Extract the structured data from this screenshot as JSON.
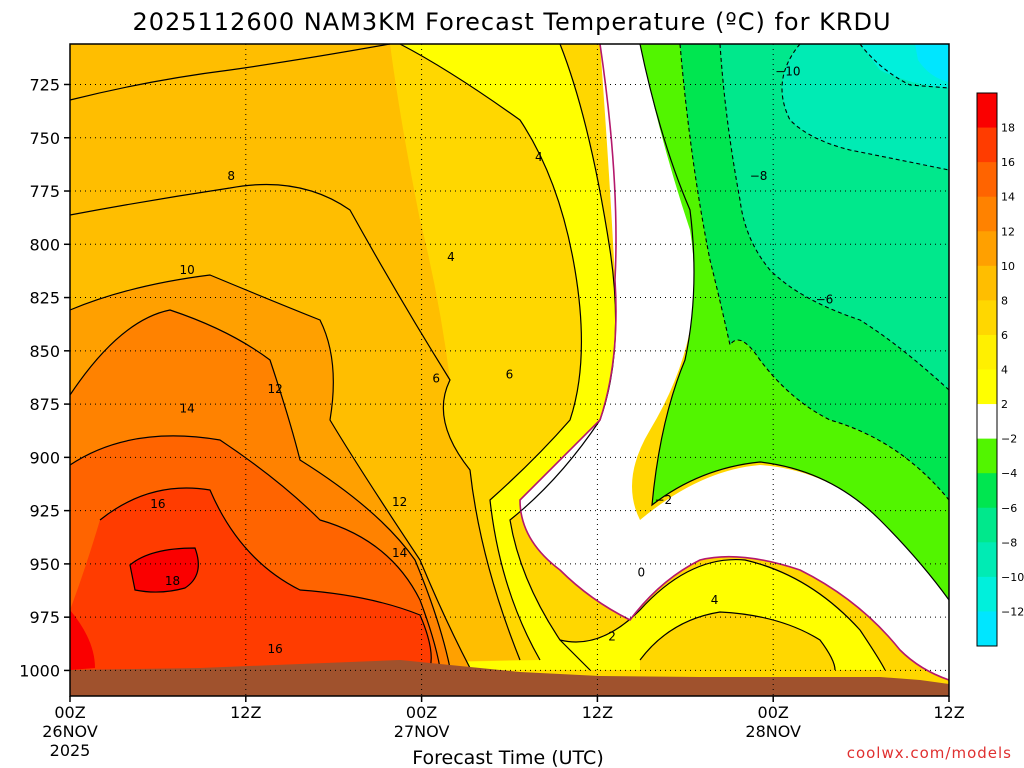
{
  "chart_data": {
    "type": "contour",
    "title": "2025112600 NAM3KM Forecast Temperature (ºC) for KRDU",
    "xlabel": "Forecast Time (UTC)",
    "ylabel": "",
    "credit": "coolwx.com/models",
    "x_ticks": [
      {
        "hour": 0,
        "lines": [
          "00Z",
          "26NOV",
          "2025"
        ]
      },
      {
        "hour": 12,
        "lines": [
          "12Z"
        ]
      },
      {
        "hour": 24,
        "lines": [
          "00Z",
          "27NOV"
        ]
      },
      {
        "hour": 36,
        "lines": [
          "12Z"
        ]
      },
      {
        "hour": 48,
        "lines": [
          "00Z",
          "28NOV"
        ]
      },
      {
        "hour": 60,
        "lines": [
          "12Z"
        ]
      }
    ],
    "xlim": [
      0,
      60
    ],
    "y_ticks": [
      725,
      750,
      775,
      800,
      825,
      850,
      875,
      900,
      925,
      950,
      975,
      1000
    ],
    "ylim": [
      706,
      1012
    ],
    "colorbar": {
      "ticks": [
        "18",
        "16",
        "14",
        "12",
        "10",
        "8",
        "6",
        "4",
        "2",
        "−2",
        "−4",
        "−6",
        "−8",
        "−10",
        "−12"
      ],
      "colors": [
        "#fa0000",
        "#ff3c00",
        "#ff6400",
        "#ff8200",
        "#ffa000",
        "#ffbe00",
        "#ffd700",
        "#fff000",
        "#ffff00",
        "#ffffff",
        "#52f500",
        "#00e650",
        "#00e88c",
        "#00ebb4",
        "#00f0dc",
        "#00e6ff"
      ],
      "bounds": [
        20,
        18,
        16,
        14,
        12,
        10,
        8,
        6,
        4,
        2,
        -2,
        -4,
        -6,
        -8,
        -10,
        -12,
        -14
      ]
    },
    "contour_labels": [
      {
        "text": "18",
        "hour": 7.0,
        "p": 958
      },
      {
        "text": "16",
        "hour": 6.0,
        "p": 922
      },
      {
        "text": "16",
        "hour": 14.0,
        "p": 990
      },
      {
        "text": "14",
        "hour": 8.0,
        "p": 877
      },
      {
        "text": "14",
        "hour": 22.5,
        "p": 945
      },
      {
        "text": "12",
        "hour": 14.0,
        "p": 868
      },
      {
        "text": "12",
        "hour": 22.5,
        "p": 921
      },
      {
        "text": "10",
        "hour": 8.0,
        "p": 812
      },
      {
        "text": "8",
        "hour": 11.0,
        "p": 768
      },
      {
        "text": "6",
        "hour": 25.0,
        "p": 863
      },
      {
        "text": "6",
        "hour": 30.0,
        "p": 861
      },
      {
        "text": "4",
        "hour": 26.0,
        "p": 806
      },
      {
        "text": "4",
        "hour": 32.0,
        "p": 759
      },
      {
        "text": "4",
        "hour": 44.0,
        "p": 967
      },
      {
        "text": "2",
        "hour": 37.0,
        "p": 984
      },
      {
        "text": "0",
        "hour": 39.0,
        "p": 954
      },
      {
        "text": "−2",
        "hour": 40.5,
        "p": 920
      },
      {
        "text": "−6",
        "hour": 51.5,
        "p": 826
      },
      {
        "text": "−8",
        "hour": 47.0,
        "p": 768
      },
      {
        "text": "−10",
        "hour": 49.0,
        "p": 719
      }
    ],
    "regions": [
      {
        "range": "16 to 20",
        "color": "#ff3c00"
      },
      {
        "range": "14 to 16",
        "color": "#ff6400"
      },
      {
        "range": "12 to 14",
        "color": "#ff8200"
      },
      {
        "range": "10 to 12",
        "color": "#ffa000"
      },
      {
        "range": "6 to 10",
        "color": "#ffbe00"
      },
      {
        "range": "4 to 6",
        "color": "#ffd700"
      },
      {
        "range": "2 to 4",
        "color": "#ffff00"
      },
      {
        "range": "-2 to 2",
        "color": "#ffffff"
      },
      {
        "range": "-2 to -4",
        "color": "#52f500"
      },
      {
        "range": "-4 to -6",
        "color": "#00e650"
      },
      {
        "range": "-6 to -8",
        "color": "#00e88c"
      },
      {
        "range": "-8 to -10",
        "color": "#00ebb4"
      },
      {
        "range": "-10 to -12",
        "color": "#00f0dc"
      },
      {
        "range": "-12 to -14",
        "color": "#00e6ff"
      }
    ],
    "ground_color": "#a0522d",
    "zero_line_color": "#b4186c"
  }
}
